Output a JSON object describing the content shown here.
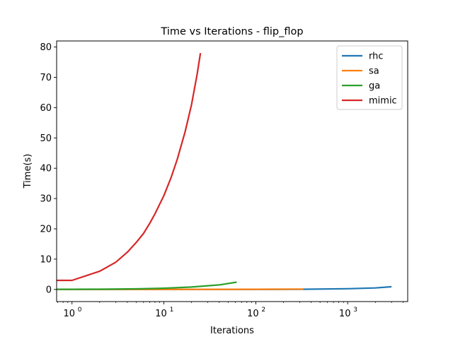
{
  "chart_data": {
    "type": "line",
    "title": "Time vs Iterations - flip_flop",
    "xlabel": "Iterations",
    "ylabel": "Time(s)",
    "xscale": "log",
    "xlim": [
      0.68,
      4500
    ],
    "ylim": [
      -4,
      82
    ],
    "yticks": [
      "0",
      "10",
      "20",
      "30",
      "40",
      "50",
      "60",
      "70",
      "80"
    ],
    "yticks_values": [
      0,
      10,
      20,
      30,
      40,
      50,
      60,
      70,
      80
    ],
    "xticks": [
      {
        "base": "10",
        "exp": "0",
        "value": 1
      },
      {
        "base": "10",
        "exp": "1",
        "value": 10
      },
      {
        "base": "10",
        "exp": "2",
        "value": 100
      },
      {
        "base": "10",
        "exp": "3",
        "value": 1000
      }
    ],
    "grid": false,
    "legend_position": "top-right",
    "series": [
      {
        "name": "rhc",
        "color": "#1f77b4",
        "x": [
          0.5,
          1,
          10,
          100,
          300,
          1000,
          2000,
          3000
        ],
        "y": [
          0.0,
          0.0,
          0.0,
          0.02,
          0.06,
          0.25,
          0.5,
          0.9
        ]
      },
      {
        "name": "sa",
        "color": "#ff7f0e",
        "x": [
          0.5,
          1,
          10,
          100,
          330
        ],
        "y": [
          0.0,
          0.0,
          0.02,
          0.05,
          0.12
        ]
      },
      {
        "name": "ga",
        "color": "#2ca02c",
        "x": [
          0.5,
          1,
          2,
          5,
          10,
          20,
          40,
          62
        ],
        "y": [
          0.05,
          0.05,
          0.08,
          0.2,
          0.4,
          0.8,
          1.5,
          2.4
        ]
      },
      {
        "name": "mimic",
        "color": "#d62728",
        "x": [
          0.5,
          1,
          2,
          3,
          4,
          5,
          6,
          7,
          8,
          10,
          12,
          14,
          17,
          20,
          23,
          25
        ],
        "y": [
          3,
          3,
          6,
          9,
          12.3,
          15.5,
          18.5,
          21.8,
          25,
          31,
          37,
          43,
          52,
          61,
          71,
          78
        ]
      }
    ]
  }
}
